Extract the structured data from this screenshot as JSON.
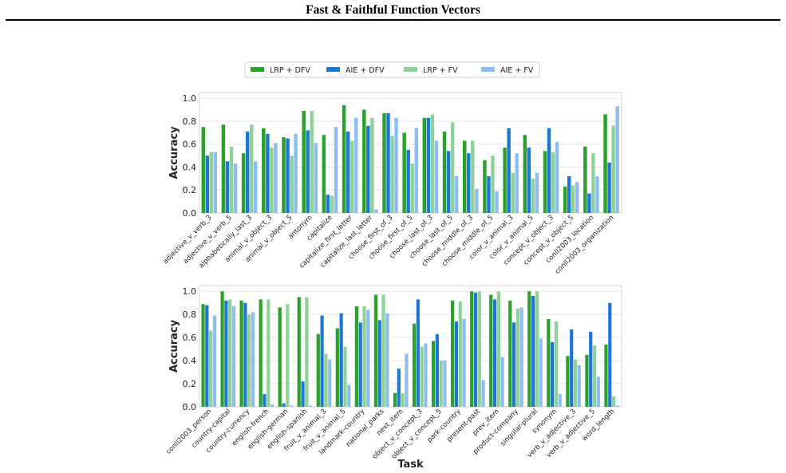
{
  "header": {
    "title": "Fast & Faithful Function Vectors"
  },
  "colors": {
    "LRP + DFV": "#2ca02c",
    "AIE + DFV": "#1f77d4",
    "LRP + FV": "#8fd19a",
    "AIE + FV": "#8fbdf2"
  },
  "chart_data": [
    {
      "type": "bar",
      "ylabel": "Accuracy",
      "xlabel": "",
      "ylim": [
        0,
        1.05
      ],
      "yticks": [
        "0.0",
        "0.2",
        "0.4",
        "0.6",
        "0.8",
        "1.0"
      ],
      "grid": true,
      "legend": "top-center",
      "categories": [
        "adjective_v_verb_3",
        "adjective_v_verb_5",
        "alphabetically_last_3",
        "animal_v_object_3",
        "animal_v_object_5",
        "antonym",
        "capitalize",
        "capitalize_first_letter",
        "capitalize_last_letter",
        "choose_first_of_3",
        "choose_first_of_5",
        "choose_last_of_3",
        "choose_last_of_5",
        "choose_middle_of_3",
        "choose_middle_of_5",
        "color_v_animal_3",
        "color_v_animal_5",
        "concept_v_object_3",
        "concept_v_object_5",
        "conll2003_location",
        "conll2003_organization"
      ],
      "series": [
        {
          "name": "LRP + DFV",
          "values": [
            0.75,
            0.77,
            0.52,
            0.74,
            0.66,
            0.89,
            0.68,
            0.94,
            0.9,
            0.87,
            0.7,
            0.83,
            0.71,
            0.63,
            0.46,
            0.57,
            0.68,
            0.54,
            0.23,
            0.58,
            0.86
          ]
        },
        {
          "name": "AIE + DFV",
          "values": [
            0.5,
            0.45,
            0.71,
            0.69,
            0.65,
            0.72,
            0.16,
            0.71,
            0.76,
            0.87,
            0.55,
            0.83,
            0.54,
            0.52,
            0.32,
            0.74,
            0.57,
            0.74,
            0.32,
            0.17,
            0.44
          ]
        },
        {
          "name": "LRP + FV",
          "values": [
            0.53,
            0.58,
            0.77,
            0.57,
            0.5,
            0.89,
            0.15,
            0.63,
            0.83,
            0.67,
            0.43,
            0.86,
            0.79,
            0.63,
            0.5,
            0.35,
            0.3,
            0.53,
            0.24,
            0.52,
            0.76
          ]
        },
        {
          "name": "AIE + FV",
          "values": [
            0.53,
            0.43,
            0.45,
            0.61,
            0.69,
            0.61,
            0.75,
            0.83,
            0.03,
            0.83,
            0.74,
            0.63,
            0.32,
            0.21,
            0.19,
            0.52,
            0.35,
            0.62,
            0.27,
            0.32,
            0.93
          ]
        }
      ]
    },
    {
      "type": "bar",
      "ylabel": "Accuracy",
      "xlabel": "Task",
      "ylim": [
        0,
        1.05
      ],
      "yticks": [
        "0.0",
        "0.2",
        "0.4",
        "0.6",
        "0.8",
        "1.0"
      ],
      "grid": true,
      "categories": [
        "conll2003_person",
        "country-capital",
        "country-currency",
        "english-french",
        "english-german",
        "english-spanish",
        "fruit_v_animal_3",
        "fruit_v_animal_5",
        "landmark-country",
        "national_parks",
        "next_item",
        "object_v_concept_3",
        "object_v_concept_5",
        "park-country",
        "present-past",
        "prev_item",
        "product-company",
        "singular-plural",
        "synonym",
        "verb_v_adjective_3",
        "verb_v_adjective_5",
        "word_length"
      ],
      "series": [
        {
          "name": "LRP + DFV",
          "values": [
            0.89,
            1.0,
            0.92,
            0.93,
            0.86,
            0.95,
            0.63,
            0.68,
            0.87,
            0.97,
            0.12,
            0.72,
            0.57,
            0.92,
            1.0,
            0.97,
            0.92,
            1.0,
            0.76,
            0.44,
            0.45,
            0.54
          ]
        },
        {
          "name": "AIE + DFV",
          "values": [
            0.88,
            0.92,
            0.9,
            0.11,
            0.03,
            0.22,
            0.79,
            0.81,
            0.73,
            0.75,
            0.33,
            0.93,
            0.63,
            0.74,
            0.99,
            0.93,
            0.73,
            0.96,
            0.56,
            0.67,
            0.65,
            0.9
          ]
        },
        {
          "name": "LRP + FV",
          "values": [
            0.66,
            0.93,
            0.8,
            0.93,
            0.89,
            0.95,
            0.46,
            0.52,
            0.87,
            0.97,
            0.12,
            0.52,
            0.4,
            0.91,
            1.0,
            1.0,
            0.85,
            1.0,
            0.74,
            0.41,
            0.53,
            0.09
          ]
        },
        {
          "name": "AIE + FV",
          "values": [
            0.79,
            0.87,
            0.82,
            0.02,
            0.01,
            0.01,
            0.41,
            0.19,
            0.84,
            0.81,
            0.46,
            0.55,
            0.4,
            0.76,
            0.23,
            0.43,
            0.86,
            0.59,
            0.11,
            0.36,
            0.26,
            0.01
          ]
        }
      ]
    }
  ]
}
